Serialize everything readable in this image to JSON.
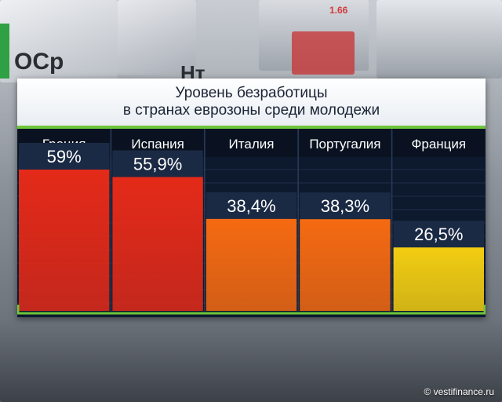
{
  "background": {
    "ticker_text": "1.66",
    "fragments": [
      "ОСр",
      "Нт"
    ]
  },
  "chart_data": {
    "type": "bar",
    "title": "Уровень безработицы\nв странах еврозоны среди молодежи",
    "title_lines": [
      "Уровень безработицы",
      "в странах еврозоны среди молодежи"
    ],
    "categories": [
      "Греция",
      "Испания",
      "Италия",
      "Португалия",
      "Франция"
    ],
    "values": [
      59,
      55.9,
      38.4,
      38.3,
      26.5
    ],
    "value_labels": [
      "59%",
      "55,9%",
      "38,4%",
      "38,3%",
      "26,5%"
    ],
    "colors": [
      "#e42a19",
      "#e42a19",
      "#f56a12",
      "#f56a12",
      "#f2cd12"
    ],
    "unit": "%",
    "ylim": [
      0,
      59
    ],
    "grid": true,
    "xlabel": "",
    "ylabel": ""
  },
  "credit": "© vestifinance.ru"
}
